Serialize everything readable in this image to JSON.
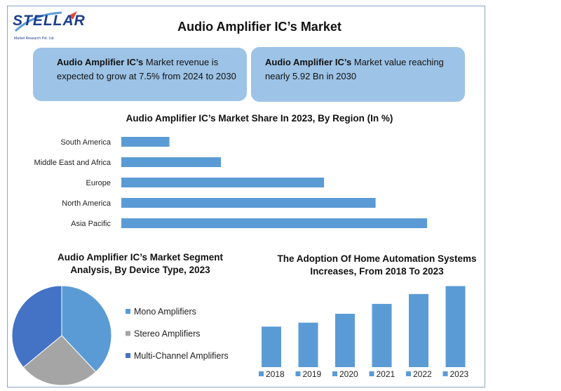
{
  "logo": {
    "name": "STELLAR",
    "sub": "Market Research Pvt. Ltd."
  },
  "title": "Audio Amplifier IC’s Market",
  "box1": {
    "bold": "Audio Amplifier IC’s",
    "text": " Market revenue is expected to grow at 7.5% from 2024 to 2030"
  },
  "box2": {
    "bold": "Audio Amplifier IC’s",
    "text": " Market value reaching nearly 5.92 Bn in 2030"
  },
  "colors": {
    "bar": "#5b9bd5",
    "box": "#9dc3e6",
    "mono": "#5b9bd5",
    "stereo": "#a5a5a5",
    "multi": "#4472c4"
  },
  "chart_data": [
    {
      "type": "bar",
      "orientation": "horizontal",
      "title": "Audio Amplifier IC’s Market Share In 2023, By Region (In %)",
      "categories": [
        "South America",
        "Middle East and Africa",
        "Europe",
        "North America",
        "Asia Pacific"
      ],
      "values": [
        7,
        14.5,
        29.5,
        37,
        44.5
      ],
      "xlim": [
        0,
        50
      ]
    },
    {
      "type": "pie",
      "title": "Audio Amplifier IC’s Market Segment Analysis, By Device Type, 2023",
      "labels": [
        "Mono Amplifiers",
        "Stereo Amplifiers",
        "Multi-Channel Amplifiers"
      ],
      "values": [
        38,
        26,
        36
      ]
    },
    {
      "type": "bar",
      "title": "The Adoption Of Home Automation Systems Increases, From 2018 To 2023",
      "categories": [
        "2018",
        "2019",
        "2020",
        "2021",
        "2022",
        "2023"
      ],
      "values": [
        41,
        45,
        54,
        64,
        74,
        82
      ],
      "ylim": [
        0,
        100
      ]
    }
  ]
}
